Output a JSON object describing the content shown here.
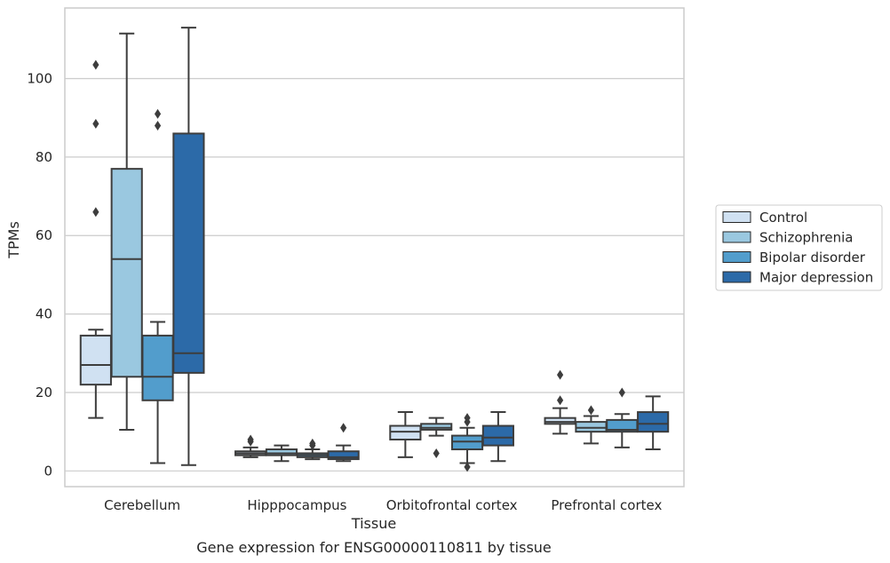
{
  "chart_data": {
    "type": "box",
    "title": "",
    "caption": "Gene expression for ENSG00000110811 by tissue",
    "xlabel": "Tissue",
    "ylabel": "TPMs",
    "ylim": [
      -4,
      118
    ],
    "yticks": [
      0,
      20,
      40,
      60,
      80,
      100
    ],
    "grid": "horizontal",
    "legend_position": "right",
    "categories": [
      "Cerebellum",
      "Hipppocampus",
      "Orbitofrontal cortex",
      "Prefrontal cortex"
    ],
    "series": [
      {
        "name": "Control",
        "color": "#d0e1f2",
        "boxes": [
          {
            "whislo": 13.5,
            "q1": 22,
            "med": 27,
            "q3": 34.5,
            "whishi": 36,
            "fliers": [
              66,
              88.5,
              103.5
            ]
          },
          {
            "whislo": 3.5,
            "q1": 4,
            "med": 4.5,
            "q3": 5,
            "whishi": 6,
            "fliers": [
              7.5,
              8
            ]
          },
          {
            "whislo": 3.5,
            "q1": 8,
            "med": 10,
            "q3": 11.5,
            "whishi": 15,
            "fliers": []
          },
          {
            "whislo": 9.5,
            "q1": 12,
            "med": 12.5,
            "q3": 13.5,
            "whishi": 16,
            "fliers": [
              18,
              24.5
            ]
          }
        ]
      },
      {
        "name": "Schizophrenia",
        "color": "#9ac8e0",
        "boxes": [
          {
            "whislo": 10.5,
            "q1": 24,
            "med": 54,
            "q3": 77,
            "whishi": 111.5,
            "fliers": []
          },
          {
            "whislo": 2.5,
            "q1": 4,
            "med": 4.5,
            "q3": 5.5,
            "whishi": 6.5,
            "fliers": []
          },
          {
            "whislo": 9,
            "q1": 10.5,
            "med": 11,
            "q3": 12,
            "whishi": 13.5,
            "fliers": [
              4.5
            ]
          },
          {
            "whislo": 7,
            "q1": 10,
            "med": 11,
            "q3": 12.5,
            "whishi": 14,
            "fliers": [
              15.5
            ]
          }
        ]
      },
      {
        "name": "Bipolar disorder",
        "color": "#529dcc",
        "boxes": [
          {
            "whislo": 2,
            "q1": 18,
            "med": 24,
            "q3": 34.5,
            "whishi": 38,
            "fliers": [
              88,
              91
            ]
          },
          {
            "whislo": 3,
            "q1": 3.5,
            "med": 4,
            "q3": 4.5,
            "whishi": 5.5,
            "fliers": [
              6.5,
              7
            ]
          },
          {
            "whislo": 2,
            "q1": 5.5,
            "med": 7.5,
            "q3": 9,
            "whishi": 11,
            "fliers": [
              1,
              12.5,
              13.5
            ]
          },
          {
            "whislo": 6,
            "q1": 10,
            "med": 10.5,
            "q3": 13,
            "whishi": 14.5,
            "fliers": [
              20
            ]
          }
        ]
      },
      {
        "name": "Major depression",
        "color": "#2c6aa8",
        "boxes": [
          {
            "whislo": 1.5,
            "q1": 25,
            "med": 30,
            "q3": 86,
            "whishi": 113,
            "fliers": []
          },
          {
            "whislo": 2.5,
            "q1": 3,
            "med": 3.5,
            "q3": 5,
            "whishi": 6.5,
            "fliers": [
              11
            ]
          },
          {
            "whislo": 2.5,
            "q1": 6.5,
            "med": 8.5,
            "q3": 11.5,
            "whishi": 15,
            "fliers": []
          },
          {
            "whislo": 5.5,
            "q1": 10,
            "med": 12,
            "q3": 15,
            "whishi": 19,
            "fliers": []
          }
        ]
      }
    ]
  }
}
